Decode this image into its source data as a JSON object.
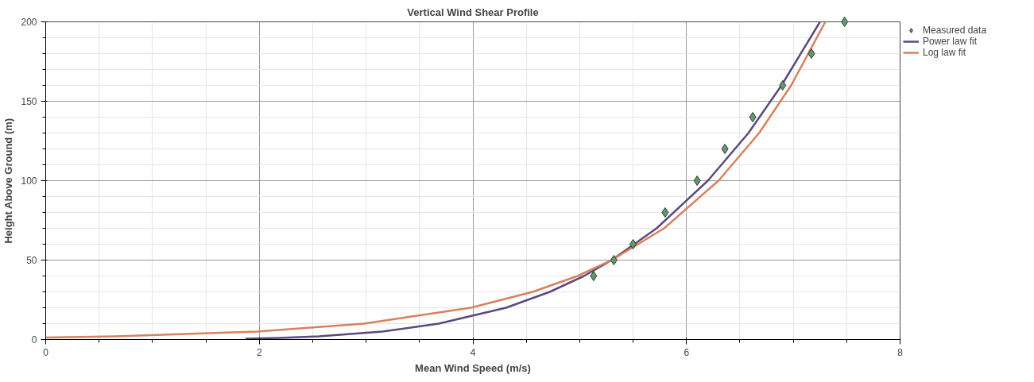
{
  "chart_data": {
    "type": "line",
    "title": "Vertical Wind Shear Profile",
    "xlabel": "Mean Wind Speed (m/s)",
    "ylabel": "Height Above Ground (m)",
    "xlim": [
      0,
      8
    ],
    "ylim": [
      0,
      200
    ],
    "xticks": [
      0,
      2,
      4,
      6,
      8
    ],
    "yticks": [
      0,
      50,
      100,
      150,
      200
    ],
    "grid": true,
    "legend": "top right",
    "series": [
      {
        "name": "Measured data",
        "type": "scatter",
        "marker": "diamond",
        "color": "#5f9a6e",
        "x": [
          5.13,
          5.32,
          5.5,
          5.8,
          6.1,
          6.36,
          6.62,
          6.9,
          7.17,
          7.48
        ],
        "values": [
          40,
          50,
          60,
          80,
          100,
          120,
          140,
          160,
          180,
          200
        ]
      },
      {
        "name": "Power law fit",
        "color": "#5b4a7a",
        "x": [
          1.87,
          2.19,
          2.56,
          3.15,
          3.68,
          4.31,
          4.72,
          5.04,
          5.3,
          5.72,
          6.2,
          6.58,
          6.89,
          7.25
        ],
        "values": [
          0.5,
          1,
          2,
          5,
          10,
          20,
          30,
          40,
          50,
          70,
          100,
          130,
          160,
          200
        ]
      },
      {
        "name": "Log law fit",
        "color": "#d9805e",
        "x": [
          0,
          0.66,
          1.98,
          2.98,
          3.98,
          4.56,
          4.98,
          5.3,
          5.79,
          6.3,
          6.68,
          6.98,
          7.3
        ],
        "values": [
          1.3,
          2,
          5,
          10,
          20,
          30,
          40,
          50,
          70,
          100,
          130,
          160,
          200
        ]
      }
    ]
  }
}
